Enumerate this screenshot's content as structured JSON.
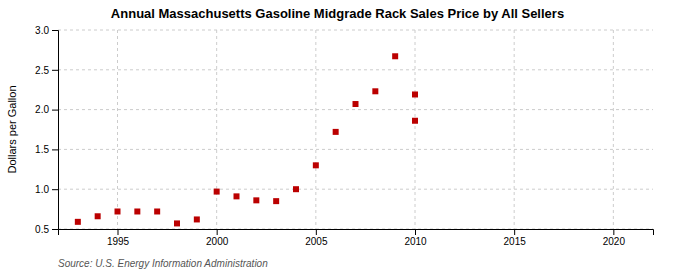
{
  "chart_data": {
    "type": "scatter",
    "title": "Annual Massachusetts Gasoline Midgrade Rack Sales Price by All Sellers",
    "y_label": "Dollars per Gallon",
    "source": "Source: U.S. Energy Information Administration",
    "series": [
      {
        "color": "#bb0000",
        "marker": "square",
        "x": [
          1993,
          1994,
          1995,
          1996,
          1997,
          1998,
          1999,
          2000,
          2001,
          2002,
          2003,
          2004,
          2005,
          2006,
          2007,
          2008,
          2009,
          2010
        ],
        "values": [
          0.59,
          0.66,
          0.72,
          0.72,
          0.72,
          0.57,
          0.62,
          0.97,
          0.91,
          0.86,
          0.85,
          1.0,
          1.3,
          1.72,
          2.07,
          2.23,
          2.67,
          1.86
        ]
      },
      {
        "color": "#bb0000",
        "marker": "square",
        "x": [
          2010
        ],
        "values": [
          2.19
        ]
      }
    ],
    "xlim": [
      1992,
      2022
    ],
    "ylim": [
      0.5,
      3.0
    ],
    "xticks": [
      1995,
      2000,
      2005,
      2010,
      2015,
      2020
    ],
    "yticks": [
      0.5,
      {
        "value": 1.0,
        "label": "1.0"
      },
      1.5,
      {
        "value": 2.0,
        "label": "2.0"
      },
      2.5,
      {
        "value": 3.0,
        "label": "3.0"
      }
    ],
    "grid": true
  }
}
